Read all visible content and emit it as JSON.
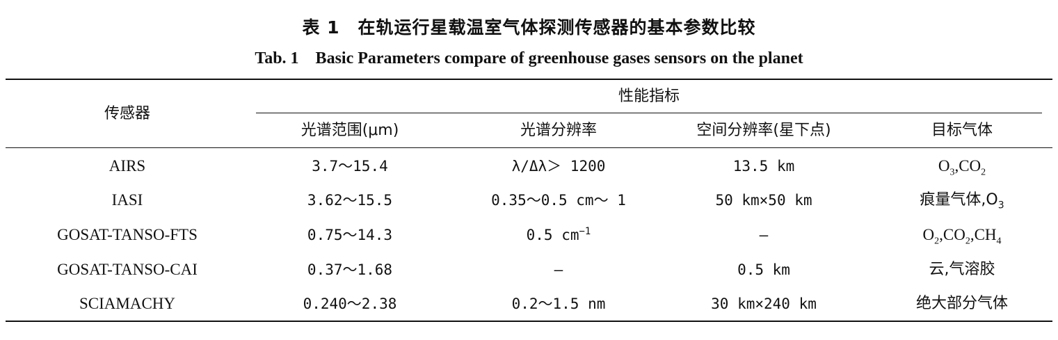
{
  "caption": {
    "cn": "表 1　在轨运行星载温室气体探测传感器的基本参数比较",
    "en": "Tab. 1　Basic Parameters compare of greenhouse gases sensors on the planet"
  },
  "header": {
    "sensor": "传感器",
    "group": "性能指标",
    "spectral_range": "光谱范围(μm)",
    "spectral_resolution": "光谱分辨率",
    "spatial_resolution": "空间分辨率(星下点)",
    "target_gas": "目标气体"
  },
  "rows": [
    {
      "sensor": "AIRS",
      "spectral_range": "3.7～15.4",
      "spectral_resolution": "λ/Δλ＞ 1200",
      "spatial_resolution": "13.5 km",
      "target_gas": {
        "t1": "O",
        "s1": "3",
        "t2": ",CO",
        "s2": "2",
        "t3": "",
        "s3": ""
      }
    },
    {
      "sensor": "IASI",
      "spectral_range": "3.62～15.5",
      "spectral_resolution": "0.35～0.5 cm～ 1",
      "spatial_resolution": "50 km×50 km",
      "target_gas": {
        "t1": "痕量气体,O",
        "s1": "3",
        "t2": "",
        "s2": "",
        "t3": "",
        "s3": ""
      }
    },
    {
      "sensor": "GOSAT-TANSO-FTS",
      "spectral_range": "0.75～14.3",
      "spectral_resolution": {
        "base": "0.5 cm",
        "sup": "−1"
      },
      "spatial_resolution": "—",
      "target_gas": {
        "t1": "O",
        "s1": "2",
        "t2": ",CO",
        "s2": "2",
        "t3": ",CH",
        "s3": "4"
      }
    },
    {
      "sensor": "GOSAT-TANSO-CAI",
      "spectral_range": "0.37～1.68",
      "spectral_resolution": "—",
      "spatial_resolution": "0.5 km",
      "target_gas": {
        "t1": "云,气溶胶",
        "s1": "",
        "t2": "",
        "s2": "",
        "t3": "",
        "s3": ""
      }
    },
    {
      "sensor": "SCIAMACHY",
      "spectral_range": "0.240～2.38",
      "spectral_resolution": "0.2～1.5 nm",
      "spatial_resolution": "30 km×240 km",
      "target_gas": {
        "t1": "绝大部分气体",
        "s1": "",
        "t2": "",
        "s2": "",
        "t3": "",
        "s3": ""
      }
    }
  ]
}
